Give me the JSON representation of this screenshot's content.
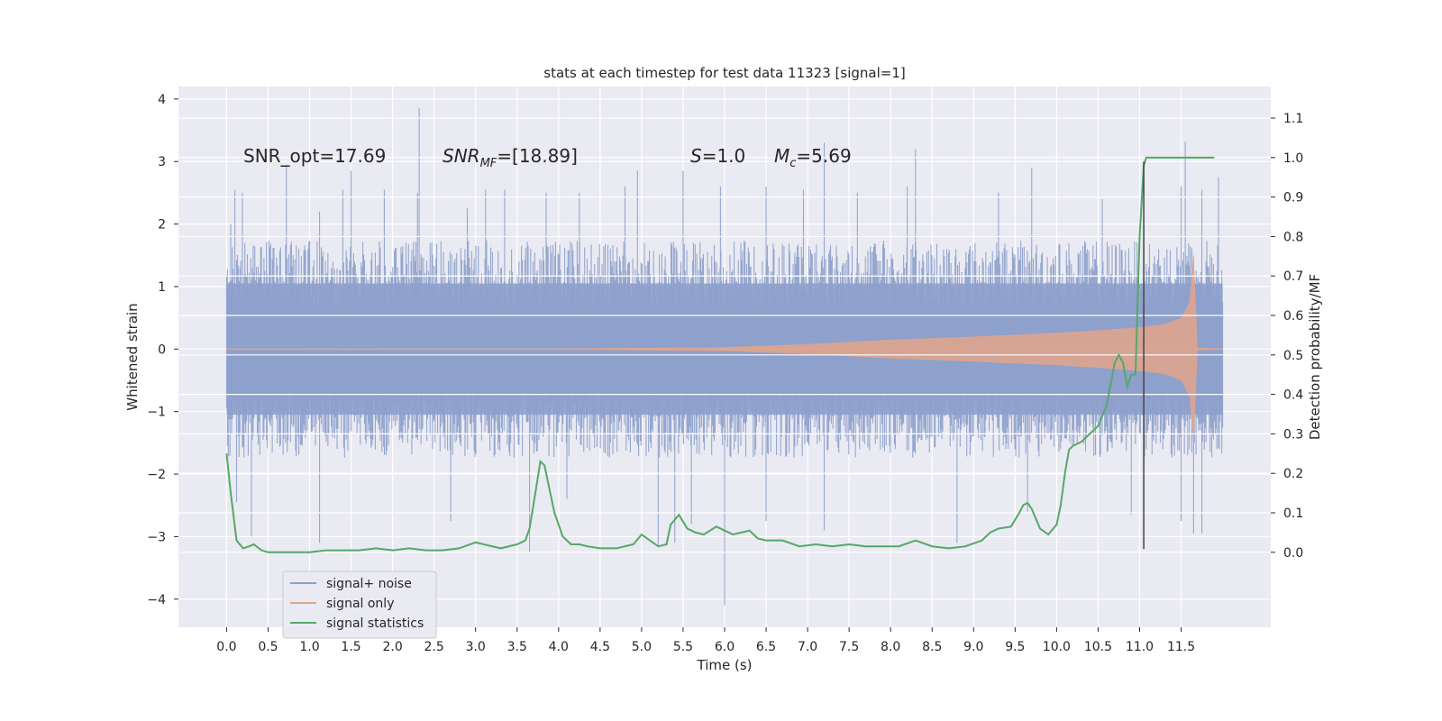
{
  "chart_data": {
    "type": "line",
    "title": "stats at each timestep for test data 11323 [signal=1]",
    "xlabel": "Time (s)",
    "ylabel_left": "Whitened strain",
    "ylabel_right": "Detection probability/MF",
    "xlim": [
      -0.58,
      12.58
    ],
    "ylim_left": [
      -4.45,
      4.2
    ],
    "ylim_right": [
      -0.19,
      1.18
    ],
    "x_ticks": [
      "0.0",
      "0.5",
      "1.0",
      "1.5",
      "2.0",
      "2.5",
      "3.0",
      "3.5",
      "4.0",
      "4.5",
      "5.0",
      "5.5",
      "6.0",
      "6.5",
      "7.0",
      "7.5",
      "8.0",
      "8.5",
      "9.0",
      "9.5",
      "10.0",
      "10.5",
      "11.0",
      "11.5"
    ],
    "y_ticks_left": [
      "4",
      "3",
      "2",
      "1",
      "0",
      "−1",
      "−2",
      "−3",
      "−4"
    ],
    "y_ticks_left_values": [
      4,
      3,
      2,
      1,
      0,
      -1,
      -2,
      -3,
      -4
    ],
    "y_ticks_right": [
      "1.1",
      "1.0",
      "0.9",
      "0.8",
      "0.7",
      "0.6",
      "0.5",
      "0.4",
      "0.3",
      "0.2",
      "0.1",
      "0.0"
    ],
    "y_ticks_right_values": [
      1.1,
      1.0,
      0.9,
      0.8,
      0.7,
      0.6,
      0.5,
      0.4,
      0.3,
      0.2,
      0.1,
      0.0
    ],
    "grid": true,
    "legend_position": "lower-left",
    "series": [
      {
        "name": "signal+ noise",
        "axis": "left",
        "color": "#8da0cb",
        "t_range": [
          0.0,
          12.0
        ],
        "typical_abs": 1.2,
        "upper_spikes": [
          [
            0.05,
            2.0
          ],
          [
            0.1,
            2.55
          ],
          [
            0.19,
            2.5
          ],
          [
            0.72,
            2.95
          ],
          [
            1.12,
            2.2
          ],
          [
            1.4,
            2.55
          ],
          [
            1.5,
            2.1
          ],
          [
            1.5,
            2.85
          ],
          [
            1.9,
            2.55
          ],
          [
            2.3,
            2.5
          ],
          [
            2.32,
            3.85
          ],
          [
            2.9,
            2.25
          ],
          [
            3.12,
            2.55
          ],
          [
            3.35,
            2.55
          ],
          [
            3.85,
            2.5
          ],
          [
            4.25,
            2.5
          ],
          [
            4.8,
            2.6
          ],
          [
            4.95,
            2.85
          ],
          [
            5.5,
            2.85
          ],
          [
            5.95,
            2.6
          ],
          [
            6.5,
            2.6
          ],
          [
            6.95,
            2.55
          ],
          [
            7.2,
            3.3
          ],
          [
            7.6,
            2.5
          ],
          [
            8.2,
            2.6
          ],
          [
            8.3,
            3.2
          ],
          [
            9.3,
            2.5
          ],
          [
            9.7,
            2.9
          ],
          [
            10.55,
            2.4
          ],
          [
            11.05,
            2.6
          ],
          [
            11.5,
            2.6
          ],
          [
            11.55,
            3.32
          ],
          [
            11.75,
            2.55
          ],
          [
            11.95,
            2.75
          ]
        ],
        "lower_spikes": [
          [
            0.12,
            -2.45
          ],
          [
            0.3,
            -3.0
          ],
          [
            1.12,
            -3.1
          ],
          [
            2.7,
            -2.75
          ],
          [
            3.65,
            -3.25
          ],
          [
            4.1,
            -2.4
          ],
          [
            5.2,
            -3.15
          ],
          [
            5.4,
            -3.1
          ],
          [
            5.6,
            -2.8
          ],
          [
            6.0,
            -4.1
          ],
          [
            6.5,
            -2.75
          ],
          [
            7.2,
            -2.9
          ],
          [
            8.8,
            -3.1
          ],
          [
            9.65,
            -2.6
          ],
          [
            10.9,
            -2.65
          ],
          [
            11.5,
            -2.75
          ],
          [
            11.65,
            -2.95
          ],
          [
            11.75,
            -2.95
          ]
        ]
      },
      {
        "name": "signal only",
        "axis": "left",
        "color": "#e3a589",
        "envelope_t": [
          0.0,
          4.0,
          6.0,
          7.0,
          8.0,
          9.0,
          10.0,
          10.5,
          11.0,
          11.3,
          11.5,
          11.6,
          11.65,
          11.7,
          12.0
        ],
        "envelope_amp": [
          0.005,
          0.01,
          0.03,
          0.08,
          0.15,
          0.2,
          0.26,
          0.3,
          0.35,
          0.4,
          0.5,
          0.75,
          1.55,
          0.02,
          0.01
        ]
      },
      {
        "name": "signal statistics",
        "axis": "right",
        "color": "#55a868",
        "x": [
          0.0,
          0.05,
          0.12,
          0.2,
          0.27,
          0.33,
          0.42,
          0.5,
          0.6,
          0.8,
          1.0,
          1.2,
          1.4,
          1.6,
          1.8,
          2.0,
          2.2,
          2.4,
          2.6,
          2.8,
          3.0,
          3.1,
          3.3,
          3.5,
          3.6,
          3.65,
          3.72,
          3.78,
          3.83,
          3.88,
          3.95,
          4.05,
          4.15,
          4.25,
          4.35,
          4.5,
          4.7,
          4.9,
          5.0,
          5.1,
          5.2,
          5.3,
          5.35,
          5.45,
          5.55,
          5.65,
          5.75,
          5.9,
          6.0,
          6.1,
          6.2,
          6.3,
          6.4,
          6.5,
          6.7,
          6.9,
          7.1,
          7.3,
          7.5,
          7.7,
          7.9,
          8.1,
          8.3,
          8.5,
          8.7,
          8.9,
          9.1,
          9.2,
          9.3,
          9.45,
          9.55,
          9.6,
          9.65,
          9.7,
          9.8,
          9.9,
          10.0,
          10.05,
          10.1,
          10.15,
          10.2,
          10.3,
          10.4,
          10.5,
          10.6,
          10.7,
          10.75,
          10.8,
          10.85,
          10.9,
          10.95,
          11.0,
          11.05,
          11.08,
          11.12,
          11.15,
          11.2,
          11.3,
          11.5,
          11.7,
          11.9
        ],
        "y": [
          0.25,
          0.15,
          0.03,
          0.01,
          0.015,
          0.02,
          0.005,
          0.0,
          0.0,
          0.0,
          0.0,
          0.005,
          0.005,
          0.005,
          0.01,
          0.005,
          0.01,
          0.005,
          0.005,
          0.01,
          0.025,
          0.02,
          0.01,
          0.02,
          0.03,
          0.06,
          0.15,
          0.23,
          0.22,
          0.17,
          0.1,
          0.04,
          0.02,
          0.02,
          0.015,
          0.01,
          0.01,
          0.02,
          0.045,
          0.03,
          0.015,
          0.02,
          0.07,
          0.095,
          0.06,
          0.05,
          0.045,
          0.065,
          0.055,
          0.045,
          0.05,
          0.055,
          0.035,
          0.03,
          0.03,
          0.015,
          0.02,
          0.015,
          0.02,
          0.015,
          0.015,
          0.015,
          0.03,
          0.015,
          0.01,
          0.015,
          0.03,
          0.05,
          0.06,
          0.065,
          0.1,
          0.12,
          0.125,
          0.11,
          0.06,
          0.045,
          0.07,
          0.12,
          0.2,
          0.26,
          0.27,
          0.28,
          0.3,
          0.32,
          0.37,
          0.48,
          0.5,
          0.48,
          0.42,
          0.45,
          0.45,
          0.8,
          0.98,
          1.0,
          1.0,
          1.0,
          1.0,
          1.0,
          1.0,
          1.0,
          1.0
        ]
      }
    ],
    "vertical_line": {
      "x": 11.05,
      "ymin": -3.2,
      "ymax": 3.0,
      "color": "#444444"
    },
    "annotations": [
      {
        "text": "SNR_opt=17.69",
        "x": 0.2,
        "y": 3.0
      },
      {
        "text": "SNR_MF=[18.89]",
        "x": 2.6,
        "y": 3.0
      },
      {
        "text": "S=1.0",
        "x": 5.6,
        "y": 3.0
      },
      {
        "text": "M_c=5.69",
        "x": 6.6,
        "y": 3.0
      }
    ]
  }
}
